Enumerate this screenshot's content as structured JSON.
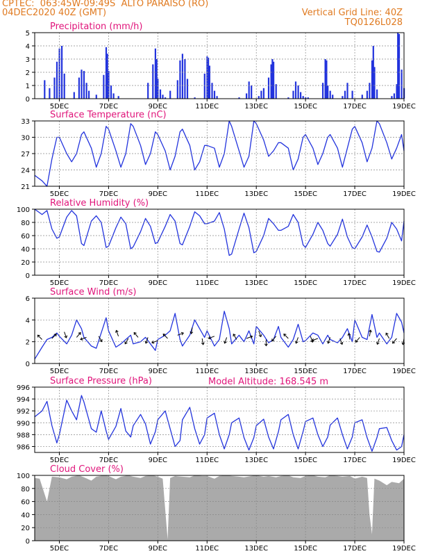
{
  "header": {
    "line1_left": "CPTEC:  063:45W-09:49S  ALTO PARAISO (RO)",
    "line2_left": "04DEC2020 40Z (GMT)",
    "line1_right": "Vertical Grid Line: 40Z",
    "line2_right": "TQ0126L028",
    "color": "#e07a20"
  },
  "colors": {
    "title": "#e0147a",
    "line": "#2233dd",
    "bar": "#2233dd",
    "cloud": "#aaaaaa",
    "grid": "#888888"
  },
  "x_axis": {
    "ticks": [
      "5DEC",
      "7DEC",
      "9DEC",
      "11DEC",
      "13DEC",
      "15DEC",
      "17DEC",
      "19DEC"
    ],
    "tick_days": [
      5,
      7,
      9,
      11,
      13,
      15,
      17,
      19
    ],
    "range_days": [
      4.0,
      19.0
    ]
  },
  "chart_data": [
    {
      "type": "bar",
      "title": "Precipitation (mm/h)",
      "ylim": [
        0,
        5
      ],
      "yticks": [
        0,
        1,
        2,
        3,
        4,
        5
      ],
      "x": [
        4.4,
        4.6,
        4.8,
        4.9,
        5.0,
        5.1,
        5.2,
        5.6,
        5.8,
        5.9,
        6.0,
        6.1,
        6.2,
        6.5,
        6.8,
        6.9,
        6.95,
        7.0,
        7.1,
        7.2,
        7.4,
        8.6,
        8.8,
        8.9,
        8.95,
        9.0,
        9.1,
        9.2,
        9.3,
        9.5,
        9.8,
        9.9,
        10.0,
        10.1,
        10.2,
        10.5,
        10.9,
        11.0,
        11.05,
        11.1,
        11.2,
        11.3,
        11.4,
        12.3,
        12.6,
        12.7,
        12.8,
        13.1,
        13.2,
        13.3,
        13.5,
        13.6,
        13.65,
        13.7,
        13.8,
        14.3,
        14.5,
        14.6,
        14.7,
        14.8,
        14.9,
        15.0,
        15.1,
        15.7,
        15.8,
        15.85,
        15.9,
        16.0,
        16.1,
        16.5,
        16.6,
        16.7,
        16.9,
        17.3,
        17.5,
        17.6,
        17.7,
        17.75,
        17.8,
        17.9,
        18.5,
        18.6,
        18.7,
        18.75,
        18.8,
        18.9,
        19.0
      ],
      "values": [
        1.4,
        0.8,
        1.6,
        2.8,
        3.8,
        4.0,
        1.9,
        0.5,
        1.6,
        2.2,
        2.1,
        1.2,
        0.6,
        0.3,
        1.8,
        3.9,
        3.4,
        2.1,
        1.0,
        0.4,
        0.2,
        1.2,
        2.6,
        3.8,
        3.0,
        1.5,
        0.7,
        0.3,
        0.1,
        0.6,
        1.4,
        2.9,
        3.4,
        3.0,
        1.5,
        0.1,
        1.9,
        3.2,
        3.1,
        2.5,
        1.2,
        0.6,
        0.2,
        0.1,
        0.4,
        1.3,
        1.0,
        0.2,
        0.6,
        0.8,
        1.6,
        2.6,
        3.0,
        2.8,
        1.1,
        0.1,
        0.6,
        1.3,
        1.0,
        0.5,
        0.2,
        0.1,
        0.1,
        1.2,
        3.0,
        2.9,
        1.0,
        0.6,
        0.3,
        0.2,
        0.6,
        1.2,
        0.6,
        0.3,
        0.6,
        1.2,
        2.9,
        4.0,
        2.4,
        0.7,
        0.2,
        0.4,
        1.1,
        5.0,
        4.9,
        2.2,
        0.8
      ],
      "grid": true
    },
    {
      "type": "line",
      "title": "Surface Temperature (nC)",
      "ylim": [
        21,
        33
      ],
      "yticks": [
        21,
        24,
        27,
        30,
        33
      ],
      "x": [
        4.0,
        4.3,
        4.5,
        4.7,
        4.9,
        5.0,
        5.3,
        5.5,
        5.7,
        5.9,
        6.0,
        6.3,
        6.5,
        6.7,
        6.9,
        7.0,
        7.3,
        7.5,
        7.7,
        7.9,
        8.0,
        8.3,
        8.5,
        8.7,
        8.9,
        9.0,
        9.3,
        9.5,
        9.7,
        9.9,
        10.0,
        10.3,
        10.5,
        10.7,
        10.9,
        11.0,
        11.3,
        11.5,
        11.7,
        11.9,
        12.0,
        12.3,
        12.5,
        12.7,
        12.9,
        13.0,
        13.3,
        13.5,
        13.7,
        13.9,
        14.0,
        14.3,
        14.5,
        14.7,
        14.9,
        15.0,
        15.3,
        15.5,
        15.7,
        15.9,
        16.0,
        16.3,
        16.5,
        16.7,
        16.9,
        17.0,
        17.3,
        17.5,
        17.7,
        17.9,
        18.0,
        18.3,
        18.5,
        18.7,
        18.9,
        19.0
      ],
      "values": [
        23.0,
        22.0,
        21.0,
        26.0,
        30.0,
        30.0,
        27.0,
        25.5,
        27.0,
        30.5,
        31.0,
        28.0,
        24.5,
        27.0,
        32.0,
        31.5,
        27.5,
        24.5,
        27.0,
        32.5,
        32.0,
        28.5,
        25.0,
        27.0,
        31.0,
        30.5,
        27.5,
        24.0,
        26.5,
        31.0,
        31.5,
        28.5,
        24.0,
        25.5,
        28.5,
        28.5,
        28.0,
        24.5,
        27.0,
        33.0,
        32.0,
        27.5,
        24.5,
        26.5,
        33.0,
        32.5,
        29.5,
        26.5,
        27.5,
        29.0,
        29.0,
        28.0,
        24.0,
        26.0,
        30.0,
        30.5,
        28.0,
        25.0,
        27.0,
        30.0,
        30.5,
        28.0,
        24.5,
        28.0,
        31.5,
        32.0,
        29.0,
        25.5,
        28.0,
        33.0,
        32.5,
        29.0,
        26.0,
        28.0,
        30.5,
        27.5
      ],
      "grid": true
    },
    {
      "type": "line",
      "title": "Relative Humidity (%)",
      "ylim": [
        0,
        100
      ],
      "yticks": [
        0,
        20,
        40,
        60,
        80,
        100
      ],
      "x": [
        4.0,
        4.3,
        4.5,
        4.7,
        4.9,
        5.0,
        5.3,
        5.5,
        5.7,
        5.9,
        6.0,
        6.3,
        6.5,
        6.7,
        6.9,
        7.0,
        7.3,
        7.5,
        7.7,
        7.9,
        8.0,
        8.3,
        8.5,
        8.7,
        8.9,
        9.0,
        9.3,
        9.5,
        9.7,
        9.9,
        10.0,
        10.3,
        10.5,
        10.7,
        10.9,
        11.0,
        11.3,
        11.5,
        11.7,
        11.9,
        12.0,
        12.3,
        12.5,
        12.7,
        12.9,
        13.0,
        13.3,
        13.5,
        13.7,
        13.9,
        14.0,
        14.3,
        14.5,
        14.7,
        14.9,
        15.0,
        15.3,
        15.5,
        15.7,
        15.9,
        16.0,
        16.3,
        16.5,
        16.7,
        16.9,
        17.0,
        17.3,
        17.5,
        17.7,
        17.9,
        18.0,
        18.3,
        18.5,
        18.7,
        18.9,
        19.0
      ],
      "values": [
        100,
        92,
        98,
        70,
        56,
        58,
        88,
        98,
        90,
        48,
        45,
        82,
        90,
        80,
        42,
        44,
        72,
        88,
        78,
        40,
        43,
        66,
        86,
        74,
        48,
        50,
        74,
        92,
        82,
        48,
        46,
        74,
        96,
        90,
        78,
        78,
        82,
        95,
        70,
        30,
        32,
        70,
        94,
        72,
        34,
        36,
        60,
        86,
        78,
        68,
        68,
        74,
        92,
        80,
        46,
        42,
        62,
        80,
        68,
        48,
        44,
        62,
        85,
        58,
        42,
        40,
        58,
        76,
        58,
        36,
        35,
        56,
        80,
        70,
        52,
        82
      ],
      "grid": true
    },
    {
      "type": "line",
      "title": "Surface Wind (m/s)",
      "ylim": [
        0,
        6
      ],
      "yticks": [
        0,
        2,
        4,
        6
      ],
      "x": [
        4.0,
        4.3,
        4.5,
        4.7,
        4.9,
        5.0,
        5.3,
        5.5,
        5.7,
        5.9,
        6.0,
        6.3,
        6.5,
        6.7,
        6.9,
        7.0,
        7.3,
        7.5,
        7.7,
        7.9,
        8.0,
        8.3,
        8.5,
        8.7,
        8.9,
        9.0,
        9.3,
        9.5,
        9.7,
        9.9,
        10.0,
        10.3,
        10.5,
        10.7,
        10.9,
        11.0,
        11.3,
        11.5,
        11.7,
        11.9,
        12.0,
        12.3,
        12.5,
        12.7,
        12.9,
        13.0,
        13.3,
        13.5,
        13.7,
        13.9,
        14.0,
        14.3,
        14.5,
        14.7,
        14.9,
        15.0,
        15.3,
        15.5,
        15.7,
        15.9,
        16.0,
        16.3,
        16.5,
        16.7,
        16.9,
        17.0,
        17.3,
        17.5,
        17.7,
        17.9,
        18.0,
        18.3,
        18.5,
        18.7,
        18.9,
        19.0
      ],
      "values": [
        0.4,
        1.5,
        2.2,
        2.4,
        2.8,
        2.5,
        1.8,
        2.6,
        4.0,
        3.2,
        2.4,
        1.6,
        1.4,
        2.8,
        4.2,
        3.0,
        1.5,
        1.8,
        2.2,
        2.6,
        1.8,
        2.0,
        2.4,
        1.8,
        1.2,
        2.2,
        2.6,
        3.0,
        4.6,
        2.2,
        1.6,
        2.6,
        4.0,
        3.2,
        2.4,
        3.0,
        1.6,
        2.2,
        4.8,
        3.2,
        1.8,
        2.6,
        2.0,
        3.0,
        1.8,
        3.4,
        2.6,
        1.9,
        2.2,
        3.4,
        2.4,
        1.5,
        2.2,
        3.6,
        2.0,
        2.1,
        2.8,
        2.6,
        1.8,
        2.6,
        2.2,
        1.9,
        2.4,
        3.2,
        2.0,
        4.0,
        2.4,
        2.2,
        4.5,
        2.4,
        2.8,
        1.8,
        2.4,
        4.6,
        3.8,
        2.8
      ],
      "grid": true
    },
    {
      "type": "line",
      "title": "Surface Pressure (hPa)",
      "ylim": [
        985,
        996
      ],
      "yticks": [
        986,
        988,
        990,
        992,
        994,
        996
      ],
      "x": [
        4.0,
        4.3,
        4.5,
        4.7,
        4.9,
        5.0,
        5.3,
        5.5,
        5.7,
        5.9,
        6.0,
        6.3,
        6.5,
        6.7,
        6.9,
        7.0,
        7.3,
        7.5,
        7.7,
        7.9,
        8.0,
        8.3,
        8.5,
        8.7,
        8.9,
        9.0,
        9.3,
        9.5,
        9.7,
        9.9,
        10.0,
        10.3,
        10.5,
        10.7,
        10.9,
        11.0,
        11.3,
        11.5,
        11.7,
        11.9,
        12.0,
        12.3,
        12.5,
        12.7,
        12.9,
        13.0,
        13.3,
        13.5,
        13.7,
        13.9,
        14.0,
        14.3,
        14.5,
        14.7,
        14.9,
        15.0,
        15.3,
        15.5,
        15.7,
        15.9,
        16.0,
        16.3,
        16.5,
        16.7,
        16.9,
        17.0,
        17.3,
        17.5,
        17.7,
        17.9,
        18.0,
        18.3,
        18.5,
        18.7,
        18.9,
        19.0
      ],
      "values": [
        991.0,
        992.0,
        993.6,
        989.5,
        986.6,
        988.0,
        993.8,
        992.0,
        990.5,
        994.6,
        993.5,
        989.0,
        988.4,
        992.0,
        988.6,
        987.2,
        989.4,
        992.4,
        988.6,
        987.6,
        989.5,
        991.4,
        989.8,
        986.4,
        988.5,
        990.5,
        992.0,
        989.0,
        986.0,
        987.0,
        990.5,
        992.6,
        989.0,
        986.4,
        988.0,
        990.8,
        991.6,
        988.0,
        985.6,
        988.0,
        990.0,
        990.8,
        987.5,
        985.4,
        987.5,
        989.5,
        990.6,
        987.6,
        985.6,
        988.5,
        990.5,
        991.4,
        988.0,
        985.6,
        988.5,
        990.2,
        990.8,
        988.0,
        986.0,
        987.6,
        989.6,
        990.8,
        988.0,
        985.6,
        987.6,
        990.0,
        990.5,
        987.5,
        985.2,
        987.5,
        989.0,
        989.2,
        987.0,
        985.4,
        986.0,
        988.0
      ],
      "annotation": "Model Altitude: 168.545 m",
      "grid": true
    },
    {
      "type": "area",
      "title": "Cloud Cover (%)",
      "ylim": [
        0,
        100
      ],
      "yticks": [
        0,
        20,
        40,
        60,
        80,
        100
      ],
      "x": [
        4.0,
        4.2,
        4.5,
        4.7,
        5.0,
        5.3,
        5.5,
        5.8,
        6.0,
        6.3,
        6.5,
        6.8,
        7.0,
        7.3,
        7.5,
        7.8,
        8.0,
        8.3,
        8.5,
        8.8,
        9.0,
        9.2,
        9.4,
        9.5,
        9.7,
        10.0,
        10.3,
        10.5,
        10.8,
        11.0,
        11.3,
        11.5,
        11.8,
        12.0,
        12.3,
        12.5,
        12.8,
        13.0,
        13.3,
        13.5,
        13.8,
        14.0,
        14.3,
        14.5,
        14.8,
        15.0,
        15.3,
        15.5,
        15.8,
        16.0,
        16.3,
        16.5,
        16.8,
        17.0,
        17.3,
        17.5,
        17.6,
        17.7,
        17.8,
        18.0,
        18.3,
        18.5,
        18.8,
        19.0
      ],
      "values": [
        96,
        95,
        60,
        98,
        97,
        94,
        98,
        100,
        97,
        92,
        98,
        100,
        99,
        94,
        98,
        100,
        98,
        96,
        99,
        100,
        98,
        95,
        2,
        96,
        99,
        98,
        97,
        100,
        99,
        99,
        95,
        99,
        100,
        99,
        98,
        97,
        99,
        100,
        98,
        99,
        97,
        99,
        100,
        97,
        96,
        99,
        100,
        98,
        97,
        100,
        99,
        98,
        99,
        95,
        98,
        96,
        40,
        10,
        95,
        92,
        85,
        90,
        88,
        95
      ],
      "grid": true
    }
  ],
  "wind_arrows": {
    "x": [
      4.3,
      4.7,
      5.2,
      5.7,
      6.1,
      6.6,
      7.4,
      7.8,
      8.2,
      8.6,
      9.0,
      9.4,
      9.8,
      10.4,
      10.8,
      11.3,
      11.8,
      12.2,
      12.6,
      13.1,
      13.4,
      13.8,
      14.3,
      14.7,
      15.2,
      15.5,
      16.0,
      16.4,
      16.8,
      17.2,
      17.6,
      18.0,
      18.4,
      18.7,
      19.0
    ],
    "deg": [
      135,
      45,
      290,
      50,
      200,
      300,
      110,
      240,
      130,
      250,
      200,
      135,
      20,
      260,
      280,
      200,
      250,
      120,
      20,
      290,
      270,
      230,
      135,
      250,
      290,
      200,
      250,
      290,
      100,
      230,
      80,
      250,
      120,
      230,
      260
    ],
    "level": [
      2.2,
      2.3,
      2.9,
      2.4,
      2.4,
      2.5,
      2.5,
      2.3,
      2.4,
      2.4,
      2.1,
      2.3,
      2.6,
      3.3,
      2.3,
      2.5,
      2.4,
      2.2,
      2.3,
      3.0,
      2.2,
      2.5,
      2.3,
      2.4,
      2.5,
      2.3,
      2.4,
      2.3,
      2.2,
      2.4,
      2.5,
      2.3,
      2.3,
      2.3,
      2.3
    ]
  }
}
